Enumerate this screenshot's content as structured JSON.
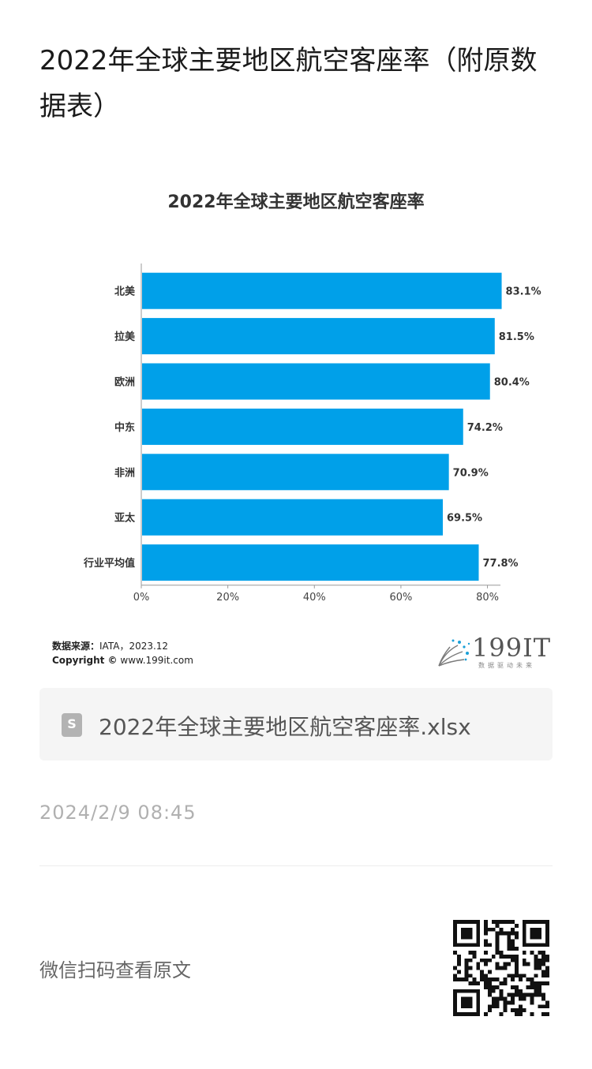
{
  "article": {
    "title": "2022年全球主要地区航空客座率（附原数据表）"
  },
  "chart_data": {
    "type": "bar",
    "orientation": "horizontal",
    "title": "2022年全球主要地区航空客座率",
    "categories": [
      "北美",
      "拉美",
      "欧洲",
      "中东",
      "非洲",
      "亚太",
      "行业平均值"
    ],
    "values": [
      83.1,
      81.5,
      80.4,
      74.2,
      70.9,
      69.5,
      77.8
    ],
    "value_labels": [
      "83.1%",
      "81.5%",
      "80.4%",
      "74.2%",
      "70.9%",
      "69.5%",
      "77.8%"
    ],
    "x_ticks": [
      0,
      20,
      40,
      60,
      80
    ],
    "x_tick_labels": [
      "0%",
      "20%",
      "40%",
      "60%",
      "80%"
    ],
    "xlim": [
      0,
      83
    ],
    "bar_color": "#00a0e9",
    "grid": false,
    "xlabel": "",
    "ylabel": ""
  },
  "source": {
    "label": "数据来源：",
    "value": "IATA，2023.12",
    "copyright_label": "Copyright ©",
    "copyright_value": "www.199it.com"
  },
  "logo": {
    "text": "199IT",
    "subtitle": "数据驱动未来"
  },
  "attachment": {
    "icon": "spreadsheet-file-icon",
    "icon_letter": "S",
    "filename": "2022年全球主要地区航空客座率.xlsx"
  },
  "timestamp": "2024/2/9 08:45",
  "qr": {
    "hint": "微信扫码查看原文",
    "icon": "qr-code-icon"
  }
}
